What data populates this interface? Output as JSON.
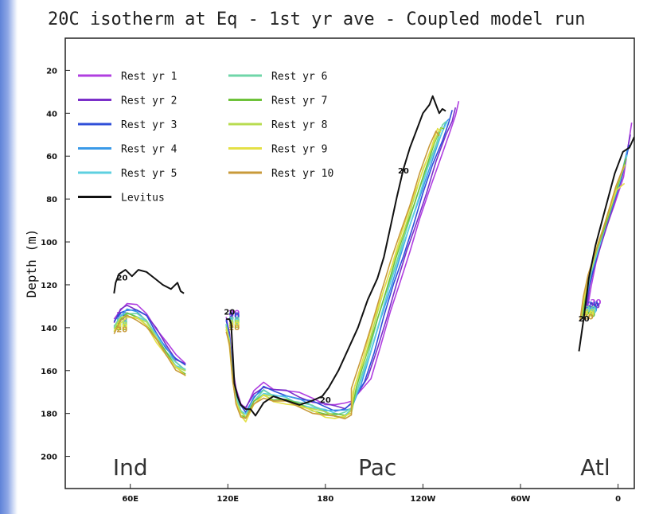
{
  "chart_data": {
    "type": "line",
    "title": "20C isotherm at Eq - 1st yr ave - Coupled model run",
    "xlabel": "",
    "ylabel": "Depth (m)",
    "xlim": [
      20,
      370
    ],
    "ylim": [
      215,
      5
    ],
    "y_ticks": [
      20,
      40,
      60,
      80,
      100,
      120,
      140,
      160,
      180,
      200
    ],
    "x_ticks": [
      {
        "lon": 60,
        "label": "60E"
      },
      {
        "lon": 120,
        "label": "120E"
      },
      {
        "lon": 180,
        "label": "180"
      },
      {
        "lon": 240,
        "label": "120W"
      },
      {
        "lon": 300,
        "label": "60W"
      },
      {
        "lon": 360,
        "label": "0"
      }
    ],
    "region_labels": [
      {
        "lon": 60,
        "depth": 205,
        "text": "Ind"
      },
      {
        "lon": 212,
        "depth": 205,
        "text": "Pac"
      },
      {
        "lon": 346,
        "depth": 205,
        "text": "Atl"
      }
    ],
    "contour_label": "20",
    "legend_placement": "top-left",
    "series": [
      {
        "name": "Rest yr 1",
        "color": "#b03fe0",
        "offset": 6,
        "depthShift": -3,
        "atlEndShift": -10
      },
      {
        "name": "Rest yr 2",
        "color": "#7b2fc9",
        "offset": 4,
        "depthShift": -2,
        "atlEndShift": -6
      },
      {
        "name": "Rest yr 3",
        "color": "#2f4fd8",
        "offset": 2,
        "depthShift": -1,
        "atlEndShift": -3
      },
      {
        "name": "Rest yr 4",
        "color": "#3a9ae8",
        "offset": 0,
        "depthShift": 0,
        "atlEndShift": -1
      },
      {
        "name": "Rest yr 5",
        "color": "#5ed0e0",
        "offset": -1,
        "depthShift": 1,
        "atlEndShift": 0
      },
      {
        "name": "Rest yr 6",
        "color": "#6fd6a8",
        "offset": -2,
        "depthShift": 1,
        "atlEndShift": 1
      },
      {
        "name": "Rest yr 7",
        "color": "#6ec23a",
        "offset": -3,
        "depthShift": 2,
        "atlEndShift": 2
      },
      {
        "name": "Rest yr 8",
        "color": "#b8dc50",
        "offset": -4,
        "depthShift": 2,
        "atlEndShift": 3
      },
      {
        "name": "Rest yr 9",
        "color": "#e4e046",
        "offset": -5,
        "depthShift": 3,
        "atlEndShift": 12
      },
      {
        "name": "Rest yr 10",
        "color": "#c89a3a",
        "offset": -6,
        "depthShift": 3,
        "atlEndShift": 4
      },
      {
        "name": "Levitus",
        "color": "#111111",
        "offset": 0,
        "depthShift": 0,
        "atlEndShift": 0
      }
    ],
    "base_model": {
      "ind": [
        [
          50,
          139
        ],
        [
          54,
          134
        ],
        [
          58,
          132
        ],
        [
          64,
          133
        ],
        [
          70,
          136
        ],
        [
          76,
          143
        ],
        [
          82,
          150
        ],
        [
          88,
          156
        ],
        [
          94,
          159
        ]
      ],
      "pac": [
        [
          119,
          138
        ],
        [
          121,
          145
        ],
        [
          123,
          162
        ],
        [
          125,
          172
        ],
        [
          128,
          178
        ],
        [
          131,
          180
        ],
        [
          136,
          173
        ],
        [
          142,
          169
        ],
        [
          148,
          171
        ],
        [
          156,
          172
        ],
        [
          164,
          174
        ],
        [
          172,
          176
        ],
        [
          180,
          178
        ],
        [
          186,
          179
        ],
        [
          192,
          179
        ],
        [
          196,
          177
        ],
        [
          202,
          166
        ],
        [
          208,
          152
        ],
        [
          214,
          136
        ],
        [
          220,
          121
        ],
        [
          226,
          107
        ],
        [
          232,
          93
        ],
        [
          238,
          79
        ],
        [
          244,
          65
        ],
        [
          250,
          53
        ],
        [
          254,
          45
        ],
        [
          256,
          42
        ]
      ],
      "atl": [
        [
          339,
          133
        ],
        [
          341,
          123
        ],
        [
          344,
          113
        ],
        [
          349,
          100
        ],
        [
          355,
          86
        ],
        [
          361,
          72
        ],
        [
          366,
          58
        ]
      ]
    },
    "levitus": {
      "ind": [
        [
          50,
          124
        ],
        [
          51,
          119
        ],
        [
          53,
          115
        ],
        [
          57,
          113
        ],
        [
          61,
          116
        ],
        [
          65,
          113
        ],
        [
          70,
          114
        ],
        [
          75,
          117
        ],
        [
          80,
          120
        ],
        [
          85,
          122
        ],
        [
          89,
          119
        ],
        [
          91,
          123
        ],
        [
          93,
          124
        ]
      ],
      "pac": [
        [
          119,
          136
        ],
        [
          121,
          136
        ],
        [
          122,
          138
        ],
        [
          124,
          166
        ],
        [
          126,
          172
        ],
        [
          128,
          176
        ],
        [
          131,
          178
        ],
        [
          134,
          178
        ],
        [
          137,
          181
        ],
        [
          142,
          175
        ],
        [
          148,
          172
        ],
        [
          156,
          174
        ],
        [
          164,
          176
        ],
        [
          172,
          174
        ],
        [
          178,
          172
        ],
        [
          182,
          168
        ],
        [
          188,
          160
        ],
        [
          194,
          150
        ],
        [
          200,
          140
        ],
        [
          206,
          127
        ],
        [
          212,
          117
        ],
        [
          216,
          107
        ],
        [
          220,
          93
        ],
        [
          224,
          79
        ],
        [
          228,
          66
        ],
        [
          232,
          56
        ],
        [
          236,
          48
        ],
        [
          240,
          40
        ],
        [
          244,
          36
        ],
        [
          246,
          32
        ],
        [
          248,
          36
        ],
        [
          250,
          40
        ],
        [
          252,
          38
        ],
        [
          254,
          39
        ]
      ],
      "atl": [
        [
          336,
          151
        ],
        [
          339,
          135
        ],
        [
          342,
          117
        ],
        [
          346,
          102
        ],
        [
          352,
          85
        ],
        [
          358,
          68
        ],
        [
          363,
          58
        ],
        [
          367,
          56
        ],
        [
          370,
          51
        ]
      ]
    }
  }
}
